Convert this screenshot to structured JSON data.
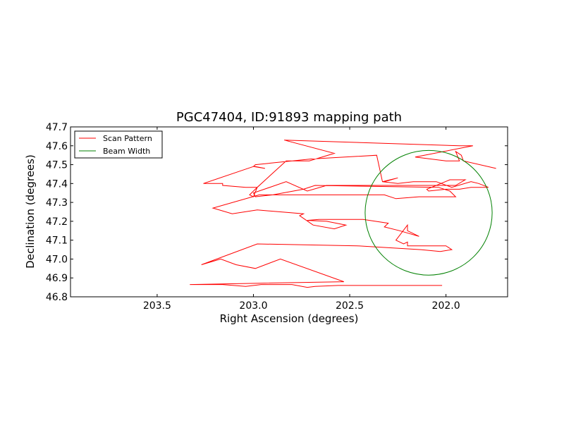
{
  "chart_data": {
    "type": "line",
    "title": "PGC47404, ID:91893 mapping path",
    "xlabel": "Right Ascension (degrees)",
    "ylabel": "Declination (degrees)",
    "xlim": [
      203.95,
      201.68
    ],
    "ylim": [
      46.8,
      47.7
    ],
    "x_inverted": true,
    "xticks": [
      203.5,
      203.0,
      202.5,
      202.0
    ],
    "xtick_labels": [
      "203.5",
      "203.0",
      "202.5",
      "202.0"
    ],
    "yticks": [
      46.8,
      46.9,
      47.0,
      47.1,
      47.2,
      47.3,
      47.4,
      47.5,
      47.6,
      47.7
    ],
    "ytick_labels": [
      "46.8",
      "46.9",
      "47.0",
      "47.1",
      "47.2",
      "47.3",
      "47.4",
      "47.5",
      "47.6",
      "47.7"
    ],
    "grid": false,
    "legend_position": "top-left",
    "series": [
      {
        "name": "Scan Pattern",
        "color": "#ff0000",
        "type": "line",
        "points": [
          [
            202.02,
            46.86
          ],
          [
            202.46,
            46.86
          ],
          [
            202.56,
            46.86
          ],
          [
            202.68,
            46.855
          ],
          [
            202.72,
            46.85
          ],
          [
            202.8,
            46.865
          ],
          [
            202.96,
            46.865
          ],
          [
            203.04,
            46.855
          ],
          [
            203.16,
            46.865
          ],
          [
            203.33,
            46.865
          ],
          [
            202.53,
            46.88
          ],
          [
            202.86,
            47.0
          ],
          [
            202.99,
            46.95
          ],
          [
            203.09,
            46.97
          ],
          [
            203.17,
            47.0
          ],
          [
            203.27,
            46.97
          ],
          [
            202.98,
            47.08
          ],
          [
            202.46,
            47.07
          ],
          [
            202.13,
            47.05
          ],
          [
            202.03,
            47.04
          ],
          [
            201.97,
            47.05
          ],
          [
            202.0,
            47.07
          ],
          [
            202.07,
            47.07
          ],
          [
            202.12,
            47.07
          ],
          [
            202.2,
            47.07
          ],
          [
            202.2,
            47.09
          ],
          [
            202.22,
            47.08
          ],
          [
            202.26,
            47.1
          ],
          [
            202.2,
            47.18
          ],
          [
            202.2,
            47.15
          ],
          [
            202.14,
            47.12
          ],
          [
            202.24,
            47.15
          ],
          [
            202.32,
            47.17
          ],
          [
            202.3,
            47.19
          ],
          [
            202.43,
            47.21
          ],
          [
            202.66,
            47.21
          ],
          [
            202.72,
            47.205
          ],
          [
            202.62,
            47.2
          ],
          [
            202.52,
            47.18
          ],
          [
            202.58,
            47.16
          ],
          [
            202.69,
            47.18
          ],
          [
            202.76,
            47.23
          ],
          [
            202.74,
            47.24
          ],
          [
            202.98,
            47.26
          ],
          [
            203.11,
            47.24
          ],
          [
            203.21,
            47.27
          ],
          [
            202.97,
            47.34
          ],
          [
            202.74,
            47.34
          ],
          [
            202.4,
            47.34
          ],
          [
            202.32,
            47.34
          ],
          [
            202.26,
            47.32
          ],
          [
            202.14,
            47.33
          ],
          [
            201.97,
            47.33
          ],
          [
            201.95,
            47.33
          ],
          [
            201.98,
            47.36
          ],
          [
            202.04,
            47.38
          ],
          [
            202.68,
            47.39
          ],
          [
            202.74,
            47.37
          ],
          [
            202.9,
            47.34
          ],
          [
            202.99,
            47.33
          ],
          [
            203.0,
            47.35
          ],
          [
            202.83,
            47.41
          ],
          [
            202.72,
            47.36
          ],
          [
            202.62,
            47.39
          ],
          [
            201.95,
            47.39
          ],
          [
            201.9,
            47.42
          ],
          [
            201.98,
            47.42
          ],
          [
            202.05,
            47.39
          ],
          [
            202.1,
            47.37
          ],
          [
            202.09,
            47.36
          ],
          [
            202.0,
            47.37
          ],
          [
            201.93,
            47.37
          ],
          [
            201.87,
            47.38
          ],
          [
            201.78,
            47.38
          ],
          [
            201.83,
            47.4
          ],
          [
            201.87,
            47.41
          ],
          [
            201.97,
            47.38
          ],
          [
            202.05,
            47.41
          ],
          [
            202.17,
            47.41
          ],
          [
            202.25,
            47.4
          ],
          [
            202.33,
            47.41
          ],
          [
            202.32,
            47.41
          ],
          [
            202.25,
            47.43
          ],
          [
            202.33,
            47.41
          ],
          [
            202.36,
            47.55
          ],
          [
            202.7,
            47.53
          ],
          [
            202.99,
            47.5
          ],
          [
            203.0,
            47.49
          ],
          [
            202.94,
            47.48
          ],
          [
            202.99,
            47.49
          ],
          [
            203.0,
            47.49
          ],
          [
            203.26,
            47.4
          ],
          [
            203.16,
            47.4
          ],
          [
            203.16,
            47.39
          ],
          [
            203.04,
            47.38
          ],
          [
            202.99,
            47.38
          ],
          [
            202.98,
            47.38
          ],
          [
            203.0,
            47.36
          ],
          [
            203.02,
            47.34
          ],
          [
            203.0,
            47.33
          ],
          [
            202.98,
            47.38
          ],
          [
            202.83,
            47.52
          ],
          [
            202.71,
            47.52
          ],
          [
            202.58,
            47.56
          ],
          [
            202.84,
            47.63
          ],
          [
            201.93,
            47.6
          ],
          [
            201.86,
            47.6
          ],
          [
            202.16,
            47.54
          ],
          [
            202.0,
            47.52
          ],
          [
            201.93,
            47.52
          ],
          [
            201.95,
            47.57
          ],
          [
            201.92,
            47.55
          ],
          [
            201.91,
            47.52
          ],
          [
            201.74,
            47.48
          ]
        ]
      },
      {
        "name": "Beam Width",
        "color": "#008000",
        "type": "circle",
        "center": [
          202.09,
          47.245
        ],
        "radius": 0.33
      }
    ]
  }
}
